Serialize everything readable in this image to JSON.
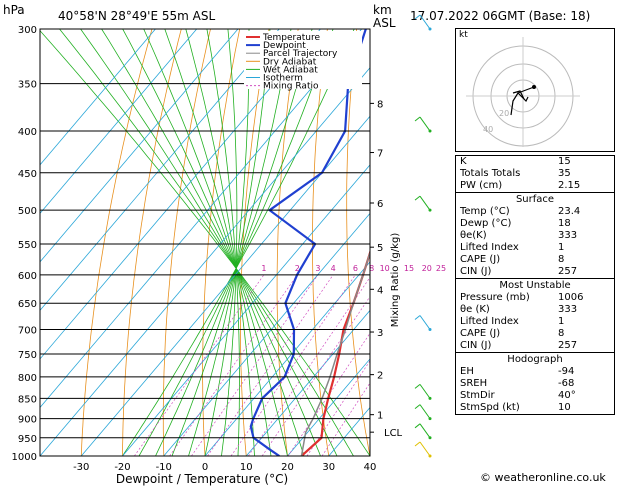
{
  "header": {
    "pressure_unit": "hPa",
    "location": "40°58'N  28°49'E  55m  ASL",
    "height_unit": "km",
    "height_unit2": "ASL",
    "datetime": "17.07.2022  06GMT  (Base: 18)"
  },
  "chart_data": {
    "type": "line",
    "title": "",
    "xlabel": "Dewpoint / Temperature (°C)",
    "ylabel": "hPa",
    "right_label": "Mixing Ratio (g/kg)",
    "xlim": [
      -40,
      40
    ],
    "pressure_ticks": [
      300,
      350,
      400,
      450,
      500,
      550,
      600,
      650,
      700,
      750,
      800,
      850,
      900,
      950,
      1000
    ],
    "x_ticks": [
      -30,
      -20,
      -10,
      0,
      10,
      20,
      30,
      40
    ],
    "km_ticks": [
      {
        "km": "1",
        "p": 890
      },
      {
        "km": "2",
        "p": 795
      },
      {
        "km": "3",
        "p": 705
      },
      {
        "km": "4",
        "p": 625
      },
      {
        "km": "5",
        "p": 555
      },
      {
        "km": "6",
        "p": 490
      },
      {
        "km": "7",
        "p": 425
      },
      {
        "km": "8",
        "p": 370
      }
    ],
    "lcl_label": "LCL",
    "lcl_p": 935,
    "mixing_ratio_labels": [
      "1",
      "2",
      "3",
      "4",
      "6",
      "8",
      "10",
      "15",
      "20",
      "25"
    ],
    "mixing_ratio_values": [
      1,
      2,
      3,
      4,
      6,
      8,
      10,
      15,
      20,
      25
    ],
    "legend": [
      "Temperature",
      "Dewpoint",
      "Parcel Trajectory",
      "Dry Adiabat",
      "Wet Adiabat",
      "Isotherm",
      "Mixing Ratio"
    ],
    "series": [
      {
        "name": "Temperature",
        "color": "#e03030",
        "points": [
          [
            1000,
            23.4
          ],
          [
            950,
            24.5
          ],
          [
            900,
            21
          ],
          [
            850,
            18
          ],
          [
            800,
            15
          ],
          [
            750,
            11.5
          ],
          [
            700,
            7.5
          ],
          [
            650,
            4.5
          ],
          [
            600,
            1
          ],
          [
            550,
            -3
          ],
          [
            500,
            -7.5
          ],
          [
            450,
            -13
          ],
          [
            400,
            -19
          ],
          [
            350,
            -26
          ],
          [
            300,
            -35
          ]
        ]
      },
      {
        "name": "Dewpoint",
        "color": "#2040d0",
        "points": [
          [
            1000,
            18
          ],
          [
            980,
            14
          ],
          [
            950,
            8
          ],
          [
            920,
            5
          ],
          [
            900,
            4
          ],
          [
            850,
            2
          ],
          [
            800,
            3
          ],
          [
            750,
            0.5
          ],
          [
            700,
            -4.5
          ],
          [
            650,
            -12
          ],
          [
            600,
            -15
          ],
          [
            550,
            -17
          ],
          [
            500,
            -35
          ],
          [
            450,
            -30
          ],
          [
            400,
            -33
          ],
          [
            350,
            -42
          ],
          [
            300,
            -49
          ]
        ]
      },
      {
        "name": "Parcel Trajectory",
        "color": "#888888",
        "points": [
          [
            1000,
            23.4
          ],
          [
            935,
            19.5
          ],
          [
            900,
            18.5
          ],
          [
            850,
            16.5
          ],
          [
            800,
            14
          ],
          [
            750,
            11
          ],
          [
            700,
            8
          ],
          [
            650,
            4.5
          ],
          [
            600,
            1
          ],
          [
            550,
            -3
          ],
          [
            500,
            -7.5
          ],
          [
            450,
            -13
          ],
          [
            400,
            -19.5
          ],
          [
            350,
            -27
          ],
          [
            300,
            -36
          ]
        ]
      }
    ]
  },
  "hodograph": {
    "label": "kt",
    "ring_labels": [
      "20",
      "40"
    ]
  },
  "indices": {
    "top": [
      {
        "label": "K",
        "value": "15"
      },
      {
        "label": "Totals Totals",
        "value": "35"
      },
      {
        "label": "PW (cm)",
        "value": "2.15"
      }
    ],
    "surface_title": "Surface",
    "surface": [
      {
        "label": "Temp (°C)",
        "value": "23.4"
      },
      {
        "label": "Dewp (°C)",
        "value": "18"
      },
      {
        "label": "θe(K)",
        "value": "333"
      },
      {
        "label": "Lifted Index",
        "value": "1"
      },
      {
        "label": "CAPE (J)",
        "value": "8"
      },
      {
        "label": "CIN (J)",
        "value": "257"
      }
    ],
    "mu_title": "Most Unstable",
    "most_unstable": [
      {
        "label": "Pressure (mb)",
        "value": "1006"
      },
      {
        "label": "θe (K)",
        "value": "333"
      },
      {
        "label": "Lifted Index",
        "value": "1"
      },
      {
        "label": "CAPE (J)",
        "value": "8"
      },
      {
        "label": "CIN (J)",
        "value": "257"
      }
    ],
    "hodo_title": "Hodograph",
    "hodo": [
      {
        "label": "EH",
        "value": "-94"
      },
      {
        "label": "SREH",
        "value": "-68"
      },
      {
        "label": "StmDir",
        "value": "40°"
      },
      {
        "label": "StmSpd (kt)",
        "value": "10"
      }
    ]
  },
  "footer": "© weatheronline.co.uk"
}
